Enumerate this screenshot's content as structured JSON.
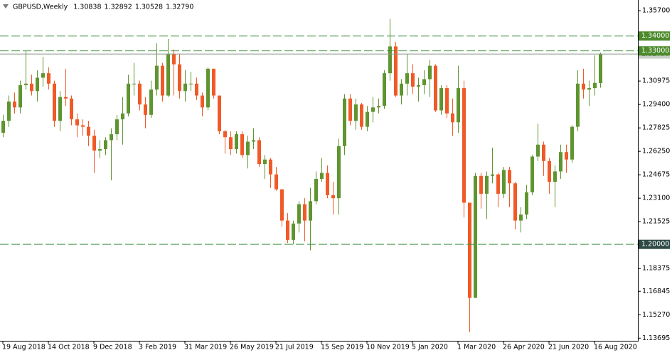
{
  "chart_data": {
    "type": "candlestick",
    "title": "GBPUSD,Weekly",
    "header_values": [
      "1.30838",
      "1.32892",
      "1.30528",
      "1.32790"
    ],
    "up_color": "#5f9530",
    "down_color": "#f05a28",
    "level_color": "#3f8f3f",
    "ylim": [
      1.13519,
      1.3642
    ],
    "yticks": [
      {
        "value": 1.357,
        "label": "1.35700"
      },
      {
        "value": 1.30975,
        "label": "1.30975"
      },
      {
        "value": 1.294,
        "label": "1.29400"
      },
      {
        "value": 1.27825,
        "label": "1.27825"
      },
      {
        "value": 1.2625,
        "label": "1.26250"
      },
      {
        "value": 1.24675,
        "label": "1.24675"
      },
      {
        "value": 1.231,
        "label": "1.23100"
      },
      {
        "value": 1.21525,
        "label": "1.21525"
      },
      {
        "value": 1.18375,
        "label": "1.18375"
      },
      {
        "value": 1.16845,
        "label": "1.16845"
      },
      {
        "value": 1.1527,
        "label": "1.15270"
      },
      {
        "value": 1.13695,
        "label": "1.13695"
      }
    ],
    "price_line": {
      "value": 1.3279,
      "label": "1.32790"
    },
    "levels": [
      {
        "value": 1.34,
        "label": "1.34000",
        "tag_color": "#4c8a2b"
      },
      {
        "value": 1.33,
        "label": "1.33000",
        "tag_color": "#4c8a2b"
      },
      {
        "value": 1.2,
        "label": "1.20000",
        "tag_color": "#2f4a45"
      }
    ],
    "categories": [
      "19 Aug 2018",
      null,
      null,
      null,
      null,
      null,
      null,
      null,
      "14 Oct 2018",
      null,
      null,
      null,
      null,
      null,
      null,
      null,
      "9 Dec 2018",
      null,
      null,
      null,
      null,
      null,
      null,
      null,
      "3 Feb 2019",
      null,
      null,
      null,
      null,
      null,
      null,
      null,
      "31 Mar 2019",
      null,
      null,
      null,
      null,
      null,
      null,
      null,
      "26 May 2019",
      null,
      null,
      null,
      null,
      null,
      null,
      null,
      "21 Jul 2019",
      null,
      null,
      null,
      null,
      null,
      null,
      null,
      "15 Sep 2019",
      null,
      null,
      null,
      null,
      null,
      null,
      null,
      "10 Nov 2019",
      null,
      null,
      null,
      null,
      null,
      null,
      null,
      "5 Jan 2020",
      null,
      null,
      null,
      null,
      null,
      null,
      null,
      "1 Mar 2020",
      null,
      null,
      null,
      null,
      null,
      null,
      null,
      "26 Apr 2020",
      null,
      null,
      null,
      null,
      null,
      null,
      null,
      "21 Jun 2020",
      null,
      null,
      null,
      null,
      null,
      null,
      null,
      "16 Aug 2020",
      null
    ],
    "open": [
      1.275,
      1.283,
      1.296,
      1.292,
      1.307,
      1.308,
      1.303,
      1.312,
      1.315,
      1.308,
      1.283,
      1.299,
      1.298,
      1.284,
      1.28,
      1.279,
      1.273,
      1.263,
      1.264,
      1.27,
      1.274,
      1.284,
      1.288,
      1.308,
      1.308,
      1.294,
      1.287,
      1.304,
      1.32,
      1.3,
      1.328,
      1.321,
      1.303,
      1.308,
      1.308,
      1.3,
      1.292,
      1.318,
      1.3,
      1.276,
      1.272,
      1.264,
      1.274,
      1.26,
      1.269,
      1.27,
      1.254,
      1.257,
      1.247,
      1.237,
      1.216,
      1.203,
      1.214,
      1.227,
      1.216,
      1.229,
      1.244,
      1.248,
      1.233,
      1.231,
      1.266,
      1.298,
      1.283,
      1.294,
      1.279,
      1.289,
      1.292,
      1.293,
      1.315,
      1.333,
      1.3,
      1.308,
      1.315,
      1.306,
      1.307,
      1.311,
      1.32,
      1.29,
      1.305,
      1.288,
      1.282,
      1.305,
      1.228,
      1.164,
      1.246,
      1.234,
      1.246,
      1.247,
      1.234,
      1.25,
      1.241,
      1.216,
      1.22,
      1.235,
      1.259,
      1.267,
      1.256,
      1.242,
      1.249,
      1.262,
      1.257,
      1.279,
      1.308,
      1.304,
      1.305,
      1.30838
    ],
    "high": [
      1.287,
      1.3,
      1.302,
      1.31,
      1.33,
      1.314,
      1.317,
      1.326,
      1.319,
      1.31,
      1.303,
      1.318,
      1.3,
      1.288,
      1.284,
      1.283,
      1.277,
      1.27,
      1.272,
      1.278,
      1.287,
      1.299,
      1.314,
      1.322,
      1.31,
      1.299,
      1.31,
      1.335,
      1.322,
      1.338,
      1.331,
      1.328,
      1.317,
      1.316,
      1.312,
      1.302,
      1.319,
      1.318,
      1.3,
      1.277,
      1.276,
      1.276,
      1.276,
      1.273,
      1.278,
      1.272,
      1.26,
      1.258,
      1.252,
      1.237,
      1.221,
      1.216,
      1.229,
      1.231,
      1.238,
      1.249,
      1.258,
      1.253,
      1.242,
      1.271,
      1.301,
      1.301,
      1.298,
      1.295,
      1.293,
      1.299,
      1.298,
      1.317,
      1.3515,
      1.336,
      1.311,
      1.328,
      1.321,
      1.312,
      1.317,
      1.324,
      1.321,
      1.307,
      1.307,
      1.298,
      1.32,
      1.31,
      1.228,
      1.248,
      1.248,
      1.249,
      1.265,
      1.248,
      1.252,
      1.252,
      1.242,
      1.225,
      1.24,
      1.26,
      1.281,
      1.269,
      1.258,
      1.253,
      1.267,
      1.267,
      1.28,
      1.317,
      1.318,
      1.31,
      1.327,
      1.32892
    ],
    "low": [
      1.272,
      1.279,
      1.288,
      1.288,
      1.304,
      1.3,
      1.296,
      1.306,
      1.304,
      1.279,
      1.276,
      1.293,
      1.28,
      1.272,
      1.273,
      1.266,
      1.248,
      1.258,
      1.26,
      1.243,
      1.27,
      1.267,
      1.286,
      1.3,
      1.29,
      1.278,
      1.285,
      1.3,
      1.296,
      1.299,
      1.3,
      1.298,
      1.296,
      1.303,
      1.297,
      1.286,
      1.29,
      1.298,
      1.274,
      1.261,
      1.26,
      1.261,
      1.258,
      1.251,
      1.264,
      1.252,
      1.244,
      1.238,
      1.236,
      1.212,
      1.201,
      1.2,
      1.208,
      1.202,
      1.196,
      1.227,
      1.242,
      1.231,
      1.22,
      1.22,
      1.26,
      1.28,
      1.277,
      1.277,
      1.276,
      1.282,
      1.288,
      1.291,
      1.31,
      1.299,
      1.294,
      1.3,
      1.301,
      1.296,
      1.301,
      1.299,
      1.289,
      1.287,
      1.285,
      1.273,
      1.275,
      1.218,
      1.141,
      1.166,
      1.224,
      1.217,
      1.241,
      1.225,
      1.231,
      1.225,
      1.21,
      1.208,
      1.217,
      1.233,
      1.256,
      1.246,
      1.234,
      1.225,
      1.244,
      1.248,
      1.255,
      1.276,
      1.298,
      1.293,
      1.3,
      1.30528
    ],
    "close": [
      1.283,
      1.296,
      1.292,
      1.307,
      1.308,
      1.303,
      1.312,
      1.315,
      1.308,
      1.283,
      1.299,
      1.298,
      1.284,
      1.28,
      1.279,
      1.273,
      1.263,
      1.264,
      1.27,
      1.274,
      1.284,
      1.288,
      1.308,
      1.308,
      1.294,
      1.287,
      1.304,
      1.32,
      1.3,
      1.328,
      1.321,
      1.303,
      1.308,
      1.308,
      1.3,
      1.292,
      1.318,
      1.3,
      1.276,
      1.272,
      1.264,
      1.274,
      1.26,
      1.269,
      1.27,
      1.254,
      1.257,
      1.247,
      1.237,
      1.216,
      1.203,
      1.214,
      1.227,
      1.216,
      1.229,
      1.244,
      1.248,
      1.233,
      1.231,
      1.266,
      1.298,
      1.283,
      1.294,
      1.279,
      1.289,
      1.292,
      1.293,
      1.315,
      1.333,
      1.3,
      1.308,
      1.315,
      1.306,
      1.307,
      1.311,
      1.32,
      1.29,
      1.305,
      1.288,
      1.282,
      1.305,
      1.228,
      1.164,
      1.246,
      1.234,
      1.246,
      1.247,
      1.234,
      1.25,
      1.241,
      1.216,
      1.22,
      1.235,
      1.259,
      1.267,
      1.256,
      1.242,
      1.249,
      1.262,
      1.257,
      1.279,
      1.308,
      1.304,
      1.305,
      1.3085,
      1.3279
    ]
  }
}
